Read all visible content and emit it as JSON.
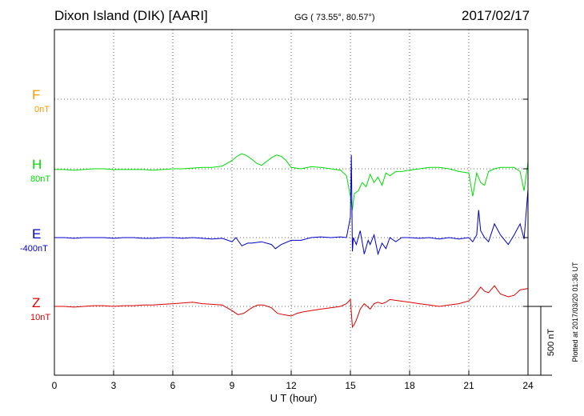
{
  "header": {
    "station": "Dixon Island (DIK)  [AARI]",
    "coords": "GG ( 73.55°,  80.57°)",
    "date": "2017/02/17"
  },
  "channels": [
    {
      "id": "F",
      "label": "F",
      "baseline": "0nT",
      "color": "#ff9900"
    },
    {
      "id": "H",
      "label": "H",
      "baseline": "80nT",
      "color": "#00dd00"
    },
    {
      "id": "E",
      "label": "E",
      "baseline": "-400nT",
      "color": "#0000cc"
    },
    {
      "id": "Z",
      "label": "Z",
      "baseline": "10nT",
      "color": "#dd0000"
    }
  ],
  "scale_label": "500 nT",
  "plotted_note": "Plotted at 2017/03/20 01:36 UT",
  "chart_data": {
    "type": "line",
    "xlabel": "U T (hour)",
    "xlim": [
      0,
      24
    ],
    "xticks": [
      0,
      3,
      6,
      9,
      12,
      15,
      18,
      21,
      24
    ],
    "grid": true,
    "series": [
      {
        "name": "H",
        "color": "#00dd00",
        "x": [
          0,
          0.5,
          1,
          1.5,
          2,
          2.5,
          3,
          3.5,
          4,
          4.5,
          5,
          5.5,
          6,
          6.5,
          7,
          7.5,
          8,
          8.5,
          9,
          9.25,
          9.5,
          9.75,
          10,
          10.25,
          10.5,
          11,
          11.25,
          11.5,
          11.75,
          12,
          12.5,
          13,
          13.5,
          14,
          14.5,
          14.8,
          15,
          15.1,
          15.2,
          15.4,
          15.6,
          15.8,
          16,
          16.2,
          16.4,
          16.6,
          16.8,
          17,
          17.3,
          17.6,
          18,
          18.5,
          19,
          19.5,
          20,
          20.5,
          21,
          21.2,
          21.4,
          21.6,
          21.8,
          22,
          22.3,
          22.6,
          23,
          23.3,
          23.6,
          23.8,
          24
        ],
        "y": [
          -5,
          -5,
          -10,
          -5,
          0,
          0,
          -5,
          -5,
          -5,
          -5,
          -10,
          -5,
          0,
          0,
          5,
          10,
          10,
          20,
          60,
          90,
          110,
          95,
          70,
          40,
          25,
          80,
          100,
          90,
          60,
          10,
          0,
          15,
          10,
          0,
          -10,
          -50,
          -200,
          -300,
          -180,
          -160,
          -100,
          -130,
          -40,
          -100,
          -60,
          -120,
          -30,
          -50,
          -20,
          -20,
          -10,
          0,
          10,
          10,
          0,
          -20,
          -30,
          -200,
          -30,
          -100,
          -120,
          -20,
          0,
          10,
          10,
          10,
          -20,
          -160,
          50
        ]
      },
      {
        "name": "E",
        "color": "#0000cc",
        "x": [
          0,
          0.5,
          1,
          1.5,
          2,
          2.5,
          3,
          3.5,
          4,
          4.5,
          5,
          5.5,
          6,
          6.5,
          7,
          7.5,
          8,
          8.5,
          9,
          9.2,
          9.5,
          9.8,
          10,
          10.5,
          11,
          11.2,
          11.5,
          12,
          12.5,
          13,
          13.5,
          14,
          14.5,
          14.8,
          15,
          15.05,
          15.1,
          15.15,
          15.3,
          15.5,
          15.7,
          15.9,
          16,
          16.2,
          16.4,
          16.6,
          16.8,
          17,
          17.3,
          17.6,
          18,
          18.5,
          19,
          19.5,
          20,
          20.5,
          21,
          21.2,
          21.4,
          21.5,
          21.6,
          21.8,
          22,
          22.3,
          22.6,
          23,
          23.3,
          23.6,
          23.8,
          24
        ],
        "y": [
          0,
          0,
          -5,
          0,
          0,
          0,
          -5,
          0,
          0,
          -5,
          -5,
          0,
          0,
          -5,
          0,
          -5,
          -10,
          -5,
          -30,
          0,
          -60,
          -40,
          -40,
          -30,
          -50,
          -80,
          -50,
          -20,
          -20,
          0,
          5,
          0,
          5,
          0,
          150,
          600,
          -100,
          0,
          -50,
          50,
          -120,
          -20,
          -50,
          20,
          -120,
          -40,
          -80,
          0,
          -30,
          0,
          0,
          -5,
          0,
          -10,
          0,
          -10,
          0,
          -30,
          20,
          200,
          50,
          0,
          -30,
          100,
          20,
          -50,
          20,
          100,
          -10,
          350
        ]
      },
      {
        "name": "Z",
        "color": "#dd0000",
        "x": [
          0,
          0.5,
          1,
          1.5,
          2,
          2.5,
          3,
          3.5,
          4,
          4.5,
          5,
          5.5,
          6,
          6.5,
          7,
          7.5,
          8,
          8.5,
          9,
          9.3,
          9.6,
          10,
          10.3,
          10.6,
          11,
          11.3,
          11.6,
          12,
          12.3,
          12.6,
          13,
          13.5,
          14,
          14.5,
          14.8,
          15,
          15.1,
          15.2,
          15.3,
          15.5,
          15.7,
          16,
          16.2,
          16.4,
          16.6,
          16.8,
          17,
          17.5,
          18,
          18.5,
          19,
          19.5,
          20,
          20.5,
          21,
          21.3,
          21.6,
          21.8,
          22,
          22.3,
          22.6,
          23,
          23.3,
          23.6,
          24
        ],
        "y": [
          0,
          0,
          -5,
          0,
          5,
          5,
          0,
          5,
          5,
          10,
          10,
          15,
          20,
          25,
          30,
          20,
          15,
          10,
          -30,
          -60,
          -50,
          -10,
          10,
          10,
          -10,
          -50,
          -60,
          -70,
          -50,
          -40,
          -30,
          -20,
          -10,
          0,
          20,
          50,
          -150,
          -130,
          -100,
          -20,
          20,
          -20,
          20,
          30,
          20,
          30,
          50,
          40,
          30,
          20,
          10,
          0,
          10,
          20,
          40,
          80,
          140,
          110,
          100,
          150,
          90,
          70,
          80,
          120,
          130
        ]
      }
    ]
  }
}
